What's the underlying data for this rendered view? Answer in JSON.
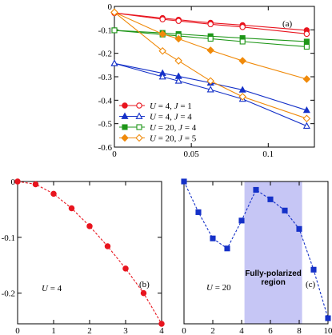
{
  "chart_data": [
    {
      "id": "a",
      "type": "line",
      "panel_label": "(a)",
      "xlim": [
        0,
        0.13
      ],
      "ylim": [
        -0.6,
        0
      ],
      "xticks": [
        0,
        0.05,
        0.1
      ],
      "xtick_labels": [
        "0",
        "0.05",
        "0.1"
      ],
      "yticks": [
        0,
        -0.1,
        -0.2,
        -0.3,
        -0.4,
        -0.5,
        -0.6
      ],
      "ytick_labels": [
        "0",
        "-0.1",
        "-0.2",
        "-0.3",
        "-0.4",
        "-0.5",
        "-0.6"
      ],
      "legend_position": "bottom-left",
      "series": [
        {
          "name": "U = 4, J = 1",
          "label_parts": [
            "U",
            " = 4, ",
            "J",
            " = 1"
          ],
          "color": "#e8141e",
          "marker": "circle",
          "filled": true,
          "x": [
            0,
            0.0313,
            0.0417,
            0.0625,
            0.0833,
            0.125
          ],
          "y": [
            -0.028,
            -0.05,
            -0.057,
            -0.07,
            -0.08,
            -0.102
          ]
        },
        {
          "name": "",
          "color": "#e8141e",
          "marker": "circle",
          "filled": false,
          "legend": false,
          "x": [
            0,
            0.0313,
            0.0417,
            0.0625,
            0.0833,
            0.125
          ],
          "y": [
            -0.028,
            -0.055,
            -0.062,
            -0.076,
            -0.088,
            -0.117
          ]
        },
        {
          "name": "U = 4, J = 4",
          "label_parts": [
            "U",
            " = 4, ",
            "J",
            " = 4"
          ],
          "color": "#1531c8",
          "marker": "triangle",
          "filled": true,
          "x": [
            0,
            0.0313,
            0.0417,
            0.0625,
            0.0833,
            0.125
          ],
          "y": [
            -0.243,
            -0.285,
            -0.298,
            -0.326,
            -0.356,
            -0.443
          ]
        },
        {
          "name": "",
          "color": "#1531c8",
          "marker": "triangle",
          "filled": false,
          "legend": false,
          "x": [
            0,
            0.0313,
            0.0417,
            0.0625,
            0.0833,
            0.125
          ],
          "y": [
            -0.243,
            -0.3,
            -0.318,
            -0.355,
            -0.395,
            -0.51
          ]
        },
        {
          "name": "U = 20, J = 4",
          "label_parts": [
            "U",
            " = 20, ",
            "J",
            " = 4"
          ],
          "color": "#1e9618",
          "marker": "square",
          "filled": true,
          "x": [
            0,
            0.0313,
            0.0417,
            0.0625,
            0.0833,
            0.125
          ],
          "y": [
            -0.102,
            -0.113,
            -0.118,
            -0.127,
            -0.135,
            -0.15
          ]
        },
        {
          "name": "",
          "color": "#1e9618",
          "marker": "square",
          "filled": false,
          "legend": false,
          "x": [
            0,
            0.0313,
            0.0417,
            0.0625,
            0.0833,
            0.125
          ],
          "y": [
            -0.102,
            -0.12,
            -0.126,
            -0.138,
            -0.15,
            -0.172
          ]
        },
        {
          "name": "U = 20, J = 5",
          "label_parts": [
            "U",
            " = 20, ",
            "J",
            " = 5"
          ],
          "color": "#f08a0a",
          "marker": "diamond",
          "filled": true,
          "x": [
            0,
            0.0313,
            0.0417,
            0.0625,
            0.0833,
            0.125
          ],
          "y": [
            -0.025,
            -0.118,
            -0.138,
            -0.187,
            -0.232,
            -0.31
          ]
        },
        {
          "name": "",
          "color": "#f08a0a",
          "marker": "diamond",
          "filled": false,
          "legend": false,
          "x": [
            0,
            0.0313,
            0.0417,
            0.0625,
            0.0833,
            0.125
          ],
          "y": [
            -0.025,
            -0.19,
            -0.232,
            -0.318,
            -0.385,
            -0.478
          ]
        }
      ]
    },
    {
      "id": "b",
      "type": "line",
      "panel_label": "(b)",
      "annotation_parts": [
        "U",
        " = 4"
      ],
      "xlim": [
        0,
        4
      ],
      "ylim": [
        -0.255,
        0
      ],
      "xticks": [
        0,
        1,
        2,
        3,
        4
      ],
      "xtick_labels": [
        "0",
        "1",
        "2",
        "3",
        "4"
      ],
      "yticks": [
        0,
        -0.1,
        -0.2
      ],
      "ytick_labels": [
        "0",
        "-0.1",
        "-0.2"
      ],
      "series": [
        {
          "name": "",
          "color": "#e8141e",
          "marker": "circle",
          "filled": true,
          "dashed": true,
          "x": [
            0,
            0.5,
            1,
            1.5,
            2,
            2.5,
            3,
            3.5,
            4
          ],
          "y": [
            0,
            -0.005,
            -0.022,
            -0.048,
            -0.08,
            -0.116,
            -0.156,
            -0.2,
            -0.255
          ]
        }
      ]
    },
    {
      "id": "c",
      "type": "line",
      "panel_label": "(c)",
      "annotation_parts": [
        "U",
        " = 20"
      ],
      "region_label": [
        "Fully-polarized",
        "region"
      ],
      "region": [
        4.2,
        8.2
      ],
      "xlim": [
        0,
        10
      ],
      "ylim": [
        -0.255,
        0
      ],
      "xticks": [
        0,
        2,
        4,
        6,
        8,
        10
      ],
      "xtick_labels": [
        "0",
        "2",
        "4",
        "6",
        "8",
        "10"
      ],
      "series": [
        {
          "name": "",
          "color": "#1531c8",
          "marker": "square",
          "filled": true,
          "dashed": true,
          "x": [
            0,
            1,
            2,
            3,
            4,
            5,
            6,
            7,
            8,
            9,
            10
          ],
          "y": [
            0,
            -0.055,
            -0.102,
            -0.12,
            -0.07,
            -0.015,
            -0.032,
            -0.052,
            -0.085,
            -0.158,
            -0.245
          ]
        }
      ]
    }
  ]
}
